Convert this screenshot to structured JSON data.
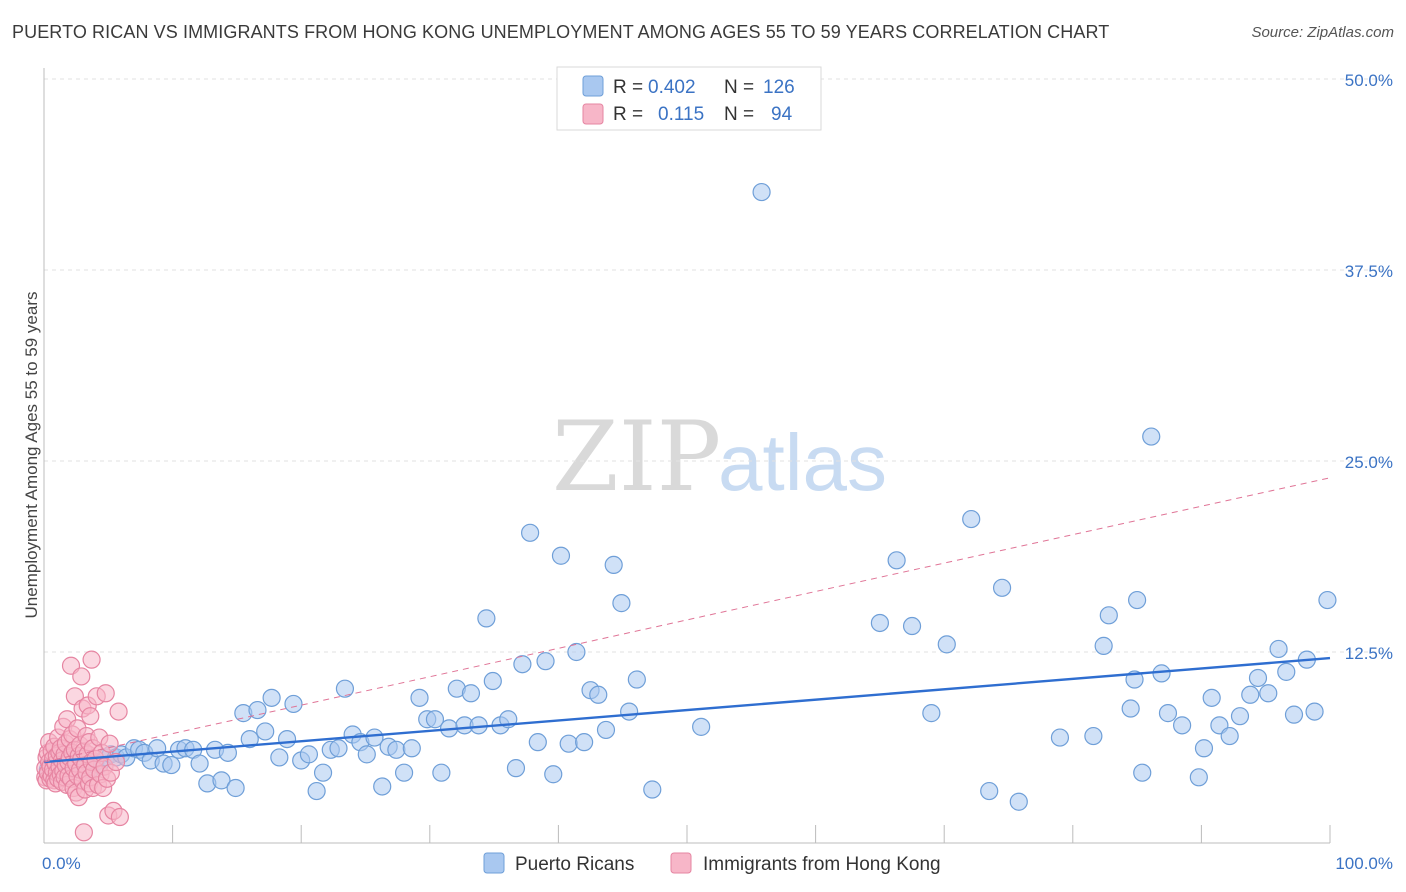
{
  "title": "PUERTO RICAN VS IMMIGRANTS FROM HONG KONG UNEMPLOYMENT AMONG AGES 55 TO 59 YEARS CORRELATION CHART",
  "source": "Source: ZipAtlas.com",
  "watermark": {
    "zip": "ZIP",
    "atlas": "atlas"
  },
  "legend": {
    "rows": [
      {
        "r_label": "R =",
        "r_value": "0.402",
        "n_label": "N =",
        "n_value": "126",
        "color": "#a9c8f0",
        "stroke": "#6f9fd8"
      },
      {
        "r_label": "R =",
        "r_value": "0.115",
        "n_label": "N =",
        "n_value": "94",
        "color": "#f7b6c8",
        "stroke": "#e685a2"
      }
    ]
  },
  "chart_data": {
    "type": "scatter",
    "ylabel": "Unemployment Among Ages 55 to 59 years",
    "xlim": [
      0,
      100
    ],
    "ylim": [
      0,
      50
    ],
    "y_ticks": [
      {
        "value": 12.5,
        "label": "12.5%"
      },
      {
        "value": 25,
        "label": "25.0%"
      },
      {
        "value": 37.5,
        "label": "37.5%"
      },
      {
        "value": 50,
        "label": "50.0%"
      }
    ],
    "x_tick_labels": {
      "left": "0.0%",
      "right": "100.0%"
    },
    "series": [
      {
        "name": "Puerto Ricans",
        "fill": "#a9c8f0",
        "stroke": "#6f9fd8",
        "trend": {
          "x0": 0,
          "y0": 5.3,
          "x1": 100,
          "y1": 12.1,
          "color": "#2f6ed0",
          "style": "solid"
        },
        "points": [
          [
            0.3,
            4.8
          ],
          [
            0.5,
            5.1
          ],
          [
            0.7,
            4.6
          ],
          [
            0.9,
            5.3
          ],
          [
            1.1,
            4.9
          ],
          [
            1.3,
            4.5
          ],
          [
            1.5,
            5.6
          ],
          [
            1.8,
            5.0
          ],
          [
            2.0,
            4.7
          ],
          [
            2.3,
            5.2
          ],
          [
            2.6,
            4.9
          ],
          [
            3.0,
            5.6
          ],
          [
            3.3,
            5.1
          ],
          [
            3.6,
            4.8
          ],
          [
            4.0,
            5.3
          ],
          [
            4.3,
            5.1
          ],
          [
            4.8,
            5.6
          ],
          [
            5.2,
            5.8
          ],
          [
            5.6,
            5.6
          ],
          [
            6.0,
            5.8
          ],
          [
            6.4,
            5.6
          ],
          [
            7.0,
            6.2
          ],
          [
            7.4,
            6.1
          ],
          [
            7.8,
            5.9
          ],
          [
            8.3,
            5.4
          ],
          [
            8.8,
            6.2
          ],
          [
            9.3,
            5.2
          ],
          [
            9.9,
            5.1
          ],
          [
            10.5,
            6.1
          ],
          [
            11.0,
            6.2
          ],
          [
            11.6,
            6.1
          ],
          [
            12.1,
            5.2
          ],
          [
            12.7,
            3.9
          ],
          [
            13.3,
            6.1
          ],
          [
            13.8,
            4.1
          ],
          [
            14.3,
            5.9
          ],
          [
            14.9,
            3.6
          ],
          [
            15.5,
            8.5
          ],
          [
            16.0,
            6.8
          ],
          [
            16.6,
            8.7
          ],
          [
            17.2,
            7.3
          ],
          [
            17.7,
            9.5
          ],
          [
            18.3,
            5.6
          ],
          [
            18.9,
            6.8
          ],
          [
            19.4,
            9.1
          ],
          [
            20.0,
            5.4
          ],
          [
            20.6,
            5.8
          ],
          [
            21.2,
            3.4
          ],
          [
            21.7,
            4.6
          ],
          [
            22.3,
            6.1
          ],
          [
            22.9,
            6.2
          ],
          [
            23.4,
            10.1
          ],
          [
            24.0,
            7.1
          ],
          [
            24.6,
            6.6
          ],
          [
            25.1,
            5.8
          ],
          [
            25.7,
            6.9
          ],
          [
            26.3,
            3.7
          ],
          [
            26.8,
            6.3
          ],
          [
            27.4,
            6.1
          ],
          [
            28.0,
            4.6
          ],
          [
            28.6,
            6.2
          ],
          [
            29.2,
            9.5
          ],
          [
            29.8,
            8.1
          ],
          [
            30.4,
            8.1
          ],
          [
            30.9,
            4.6
          ],
          [
            31.5,
            7.5
          ],
          [
            32.1,
            10.1
          ],
          [
            32.7,
            7.7
          ],
          [
            33.2,
            9.8
          ],
          [
            33.8,
            7.7
          ],
          [
            34.4,
            14.7
          ],
          [
            34.9,
            10.6
          ],
          [
            35.5,
            7.7
          ],
          [
            36.1,
            8.1
          ],
          [
            36.7,
            4.9
          ],
          [
            37.2,
            11.7
          ],
          [
            37.8,
            20.3
          ],
          [
            38.4,
            6.6
          ],
          [
            39.0,
            11.9
          ],
          [
            39.6,
            4.5
          ],
          [
            40.2,
            18.8
          ],
          [
            40.8,
            6.5
          ],
          [
            41.4,
            12.5
          ],
          [
            42.0,
            6.6
          ],
          [
            42.5,
            10.0
          ],
          [
            43.1,
            9.7
          ],
          [
            43.7,
            7.4
          ],
          [
            44.3,
            18.2
          ],
          [
            44.9,
            15.7
          ],
          [
            45.5,
            8.6
          ],
          [
            46.1,
            10.7
          ],
          [
            47.3,
            3.5
          ],
          [
            51.1,
            7.6
          ],
          [
            55.8,
            42.6
          ],
          [
            65.0,
            14.4
          ],
          [
            66.3,
            18.5
          ],
          [
            67.5,
            14.2
          ],
          [
            69.0,
            8.5
          ],
          [
            70.2,
            13.0
          ],
          [
            72.1,
            21.2
          ],
          [
            73.5,
            3.4
          ],
          [
            74.5,
            16.7
          ],
          [
            75.8,
            2.7
          ],
          [
            79.0,
            6.9
          ],
          [
            81.6,
            7.0
          ],
          [
            82.4,
            12.9
          ],
          [
            82.8,
            14.9
          ],
          [
            84.5,
            8.8
          ],
          [
            84.8,
            10.7
          ],
          [
            85.0,
            15.9
          ],
          [
            85.4,
            4.6
          ],
          [
            86.1,
            26.6
          ],
          [
            86.9,
            11.1
          ],
          [
            87.4,
            8.5
          ],
          [
            88.5,
            7.7
          ],
          [
            89.8,
            4.3
          ],
          [
            90.2,
            6.2
          ],
          [
            90.8,
            9.5
          ],
          [
            91.4,
            7.7
          ],
          [
            92.2,
            7.0
          ],
          [
            93.0,
            8.3
          ],
          [
            93.8,
            9.7
          ],
          [
            94.4,
            10.8
          ],
          [
            95.2,
            9.8
          ],
          [
            96.0,
            12.7
          ],
          [
            96.6,
            11.2
          ],
          [
            97.2,
            8.4
          ],
          [
            98.2,
            12.0
          ],
          [
            98.8,
            8.6
          ],
          [
            99.8,
            15.9
          ]
        ]
      },
      {
        "name": "Immigrants from Hong Kong",
        "fill": "#f7b6c8",
        "stroke": "#e685a2",
        "trend": {
          "x0": 0,
          "y0": 5.3,
          "x1": 100,
          "y1": 23.9,
          "color": "#e07597",
          "style": "dashed"
        },
        "points": [
          [
            0.1,
            4.3
          ],
          [
            0.1,
            4.9
          ],
          [
            0.2,
            5.6
          ],
          [
            0.2,
            4.1
          ],
          [
            0.3,
            5.9
          ],
          [
            0.3,
            4.6
          ],
          [
            0.4,
            6.6
          ],
          [
            0.4,
            5.3
          ],
          [
            0.5,
            4.2
          ],
          [
            0.5,
            5.0
          ],
          [
            0.6,
            6.0
          ],
          [
            0.6,
            4.4
          ],
          [
            0.7,
            5.5
          ],
          [
            0.7,
            4.8
          ],
          [
            0.8,
            6.3
          ],
          [
            0.8,
            4.1
          ],
          [
            0.9,
            5.2
          ],
          [
            0.9,
            3.9
          ],
          [
            1.0,
            5.7
          ],
          [
            1.0,
            4.6
          ],
          [
            1.1,
            6.9
          ],
          [
            1.1,
            4.2
          ],
          [
            1.2,
            5.0
          ],
          [
            1.2,
            5.9
          ],
          [
            1.3,
            4.5
          ],
          [
            1.3,
            6.2
          ],
          [
            1.4,
            4.0
          ],
          [
            1.4,
            5.4
          ],
          [
            1.5,
            7.6
          ],
          [
            1.5,
            4.7
          ],
          [
            1.6,
            5.8
          ],
          [
            1.6,
            4.3
          ],
          [
            1.7,
            6.5
          ],
          [
            1.7,
            5.1
          ],
          [
            1.8,
            8.1
          ],
          [
            1.8,
            3.8
          ],
          [
            1.9,
            5.3
          ],
          [
            1.9,
            4.4
          ],
          [
            2.0,
            6.8
          ],
          [
            2.0,
            5.6
          ],
          [
            2.1,
            11.6
          ],
          [
            2.1,
            4.2
          ],
          [
            2.2,
            7.1
          ],
          [
            2.2,
            5.9
          ],
          [
            2.3,
            3.6
          ],
          [
            2.3,
            4.9
          ],
          [
            2.4,
            9.6
          ],
          [
            2.4,
            6.1
          ],
          [
            2.5,
            3.3
          ],
          [
            2.5,
            5.2
          ],
          [
            2.6,
            7.5
          ],
          [
            2.6,
            4.4
          ],
          [
            2.7,
            5.7
          ],
          [
            2.7,
            3.0
          ],
          [
            2.8,
            6.4
          ],
          [
            2.8,
            4.8
          ],
          [
            2.9,
            10.9
          ],
          [
            2.9,
            5.5
          ],
          [
            3.0,
            8.8
          ],
          [
            3.0,
            4.1
          ],
          [
            3.1,
            0.7
          ],
          [
            3.1,
            6.0
          ],
          [
            3.2,
            3.5
          ],
          [
            3.2,
            5.1
          ],
          [
            3.3,
            7.0
          ],
          [
            3.3,
            4.6
          ],
          [
            3.4,
            9.0
          ],
          [
            3.4,
            5.8
          ],
          [
            3.5,
            3.9
          ],
          [
            3.5,
            6.6
          ],
          [
            3.6,
            4.3
          ],
          [
            3.6,
            8.3
          ],
          [
            3.7,
            5.3
          ],
          [
            3.7,
            12.0
          ],
          [
            3.8,
            3.6
          ],
          [
            3.8,
            6.2
          ],
          [
            3.9,
            4.8
          ],
          [
            4.0,
            5.5
          ],
          [
            4.1,
            9.6
          ],
          [
            4.2,
            3.8
          ],
          [
            4.3,
            6.9
          ],
          [
            4.4,
            4.5
          ],
          [
            4.5,
            5.9
          ],
          [
            4.6,
            3.6
          ],
          [
            4.7,
            5.0
          ],
          [
            4.8,
            9.8
          ],
          [
            4.9,
            4.2
          ],
          [
            5.0,
            1.8
          ],
          [
            5.1,
            6.5
          ],
          [
            5.2,
            4.6
          ],
          [
            5.4,
            2.1
          ],
          [
            5.6,
            5.3
          ],
          [
            5.8,
            8.6
          ],
          [
            5.9,
            1.7
          ]
        ]
      }
    ],
    "bottom_legend": [
      "Puerto Ricans",
      "Immigrants from Hong Kong"
    ]
  }
}
